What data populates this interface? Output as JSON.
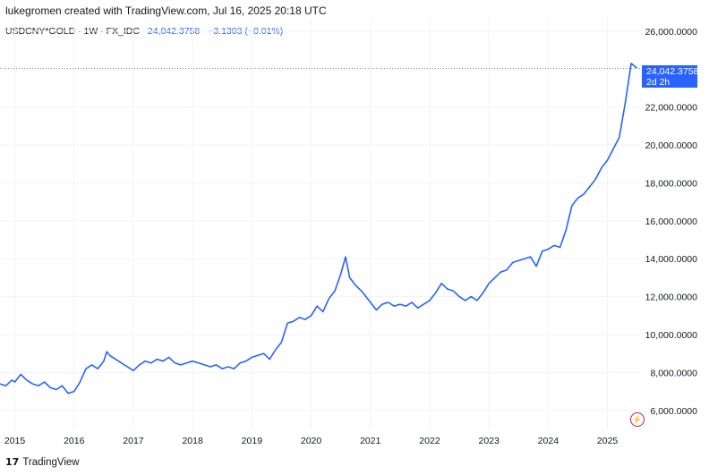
{
  "header": {
    "attribution": "lukegromen created with TradingView.com, Jul 16, 2025 20:18 UTC"
  },
  "legend": {
    "symbol": "USDCNY*GOLD · 1W · FX_IDC",
    "value": "24,042.3758",
    "change": "−3.1303 (−0.01%)"
  },
  "last_price": {
    "value": "24,042.3758",
    "countdown": "2d 2h"
  },
  "footer": {
    "logo": "17",
    "brand": "TradingView"
  },
  "icons": {
    "alert": "lightning-icon"
  },
  "colors": {
    "line": "#2962ff",
    "grid": "#f0f3fa",
    "price_line": "#2962ff"
  },
  "chart_data": {
    "type": "line",
    "title": "",
    "xlabel": "",
    "ylabel": "",
    "x_ticks": [
      "2015",
      "2016",
      "2017",
      "2018",
      "2019",
      "2020",
      "2021",
      "2022",
      "2023",
      "2024",
      "2025"
    ],
    "y_ticks": [
      "6,000.0000",
      "8,000.0000",
      "10,000.0000",
      "12,000.0000",
      "14,000.0000",
      "16,000.0000",
      "18,000.0000",
      "20,000.0000",
      "22,000.0000",
      "26,000.0000"
    ],
    "ylim": [
      5000,
      26700
    ],
    "xlim": [
      2014.75,
      2025.55
    ],
    "grid": true,
    "series": [
      {
        "name": "",
        "x": [
          2014.75,
          2014.85,
          2014.95,
          2015.0,
          2015.1,
          2015.2,
          2015.3,
          2015.4,
          2015.5,
          2015.6,
          2015.7,
          2015.8,
          2015.9,
          2016.0,
          2016.1,
          2016.2,
          2016.3,
          2016.4,
          2016.5,
          2016.55,
          2016.6,
          2016.7,
          2016.8,
          2016.9,
          2017.0,
          2017.1,
          2017.2,
          2017.3,
          2017.4,
          2017.5,
          2017.6,
          2017.7,
          2017.8,
          2017.9,
          2018.0,
          2018.1,
          2018.2,
          2018.3,
          2018.4,
          2018.5,
          2018.6,
          2018.7,
          2018.8,
          2018.9,
          2019.0,
          2019.1,
          2019.2,
          2019.3,
          2019.4,
          2019.5,
          2019.6,
          2019.7,
          2019.8,
          2019.9,
          2020.0,
          2020.1,
          2020.2,
          2020.3,
          2020.4,
          2020.5,
          2020.58,
          2020.65,
          2020.75,
          2020.85,
          2020.95,
          2021.0,
          2021.1,
          2021.2,
          2021.3,
          2021.4,
          2021.5,
          2021.6,
          2021.7,
          2021.8,
          2021.9,
          2022.0,
          2022.1,
          2022.2,
          2022.3,
          2022.4,
          2022.5,
          2022.6,
          2022.7,
          2022.8,
          2022.9,
          2023.0,
          2023.1,
          2023.2,
          2023.3,
          2023.4,
          2023.5,
          2023.6,
          2023.7,
          2023.8,
          2023.9,
          2024.0,
          2024.1,
          2024.2,
          2024.3,
          2024.4,
          2024.5,
          2024.6,
          2024.7,
          2024.8,
          2024.9,
          2025.0,
          2025.1,
          2025.2,
          2025.3,
          2025.4,
          2025.5
        ],
        "y": [
          7400,
          7300,
          7600,
          7500,
          7900,
          7600,
          7400,
          7300,
          7500,
          7200,
          7100,
          7300,
          6900,
          7000,
          7500,
          8200,
          8400,
          8200,
          8600,
          9100,
          8900,
          8700,
          8500,
          8300,
          8100,
          8400,
          8600,
          8500,
          8700,
          8600,
          8800,
          8500,
          8400,
          8500,
          8600,
          8500,
          8400,
          8300,
          8400,
          8200,
          8300,
          8200,
          8500,
          8600,
          8800,
          8900,
          9000,
          8700,
          9200,
          9600,
          10600,
          10700,
          10900,
          10800,
          11000,
          11500,
          11200,
          11900,
          12300,
          13200,
          14100,
          13000,
          12600,
          12300,
          11900,
          11700,
          11300,
          11600,
          11700,
          11500,
          11600,
          11500,
          11700,
          11400,
          11600,
          11800,
          12200,
          12700,
          12400,
          12300,
          12000,
          11800,
          12000,
          11800,
          12200,
          12700,
          13000,
          13300,
          13400,
          13800,
          13900,
          14000,
          14100,
          13600,
          14400,
          14500,
          14700,
          14600,
          15500,
          16800,
          17200,
          17400,
          17800,
          18200,
          18800,
          19200,
          19800,
          20400,
          22200,
          24300,
          24042
        ]
      }
    ]
  }
}
